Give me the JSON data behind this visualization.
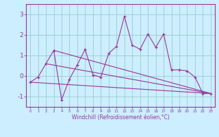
{
  "xlabel": "Windchill (Refroidissement éolien,°C)",
  "x": [
    0,
    1,
    2,
    3,
    4,
    5,
    6,
    7,
    8,
    9,
    10,
    11,
    12,
    13,
    14,
    15,
    16,
    17,
    18,
    19,
    20,
    21,
    22,
    23
  ],
  "series1": [
    -0.3,
    -0.05,
    0.6,
    1.25,
    -1.15,
    -0.15,
    0.55,
    1.3,
    0.05,
    -0.05,
    1.1,
    1.45,
    2.9,
    1.5,
    1.3,
    2.05,
    1.4,
    2.05,
    0.3,
    0.3,
    0.25,
    -0.05,
    -0.85,
    -0.85
  ],
  "trend_lines": [
    {
      "x": [
        0,
        23
      ],
      "y": [
        -0.3,
        -0.85
      ]
    },
    {
      "x": [
        3,
        23
      ],
      "y": [
        1.25,
        -0.85
      ]
    },
    {
      "x": [
        2,
        23
      ],
      "y": [
        0.6,
        -0.85
      ]
    }
  ],
  "bg_color": "#cceeff",
  "line_color": "#993399",
  "grid_color": "#99cccc",
  "ylim": [
    -1.5,
    3.5
  ],
  "xlim": [
    -0.5,
    23.5
  ],
  "yticks": [
    -1,
    0,
    1,
    2,
    3
  ],
  "xticks": [
    0,
    1,
    2,
    3,
    4,
    5,
    6,
    7,
    8,
    9,
    10,
    11,
    12,
    13,
    14,
    15,
    16,
    17,
    18,
    19,
    20,
    21,
    22,
    23
  ],
  "figsize": [
    3.2,
    2.0
  ],
  "dpi": 100
}
